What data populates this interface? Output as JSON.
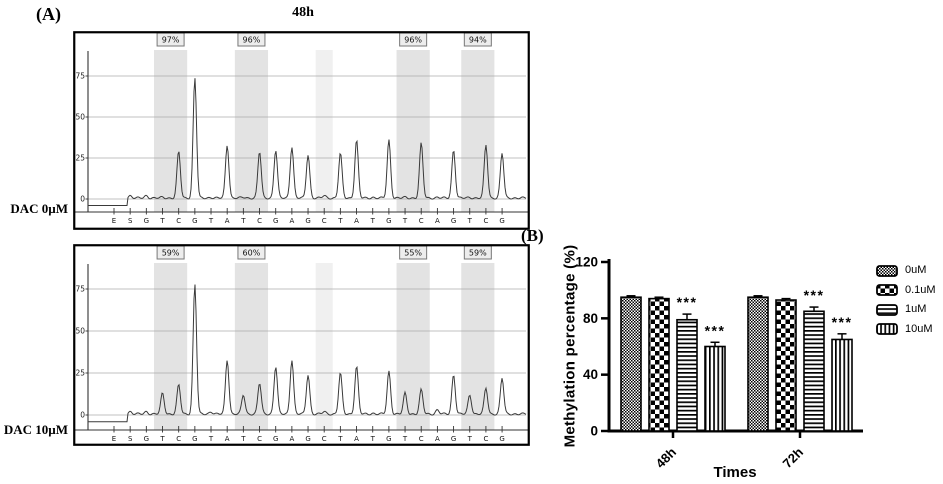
{
  "panel_a": {
    "label": "(A)",
    "title": "48h",
    "row_labels": [
      "DAC 0µM",
      "DAC 10µM"
    ]
  },
  "panel_b": {
    "label": "(B)",
    "ylabel": "Methylation percentage (%)",
    "xlabel": "Times",
    "legend": [
      "0uM",
      "0.1uM",
      "1uM",
      "10uM"
    ]
  },
  "chart_data": [
    {
      "type": "line",
      "subtype": "pyrogram",
      "name": "pyrogram-dac-0um",
      "title": "48h",
      "row_label": "DAC 0µM",
      "x_sequence": [
        "E",
        "S",
        "G",
        "T",
        "C",
        "G",
        "T",
        "A",
        "T",
        "C",
        "G",
        "A",
        "G",
        "C",
        "T",
        "A",
        "T",
        "G",
        "T",
        "C",
        "A",
        "G",
        "T",
        "C",
        "G"
      ],
      "peak_heights": [
        0,
        2,
        2,
        1,
        29,
        74,
        1,
        33,
        1,
        29,
        30,
        32,
        27,
        2,
        28,
        36,
        1,
        36,
        1,
        34,
        1,
        30,
        1,
        33,
        28
      ],
      "pre_signal_baseline": -4,
      "yticks": [
        0,
        25,
        50,
        75
      ],
      "ylim": [
        -8,
        92
      ],
      "methylation_sites": [
        {
          "positions": [
            3,
            4
          ],
          "label": "97%"
        },
        {
          "positions": [
            8,
            9
          ],
          "label": "96%"
        },
        {
          "positions": [
            13
          ],
          "label": "",
          "light": true
        },
        {
          "positions": [
            18,
            19
          ],
          "label": "96%"
        },
        {
          "positions": [
            22,
            23
          ],
          "label": "94%"
        }
      ]
    },
    {
      "type": "line",
      "subtype": "pyrogram",
      "name": "pyrogram-dac-10um",
      "title": "",
      "row_label": "DAC 10µM",
      "x_sequence": [
        "E",
        "S",
        "G",
        "T",
        "C",
        "G",
        "T",
        "A",
        "T",
        "C",
        "G",
        "A",
        "G",
        "C",
        "T",
        "A",
        "T",
        "G",
        "T",
        "C",
        "A",
        "G",
        "T",
        "C",
        "G"
      ],
      "peak_heights": [
        0,
        2,
        2,
        13,
        18,
        78,
        2,
        33,
        12,
        19,
        29,
        33,
        24,
        2,
        25,
        29,
        1,
        26,
        13,
        15,
        3,
        24,
        12,
        16,
        22
      ],
      "pre_signal_baseline": -4,
      "yticks": [
        0,
        25,
        50,
        75
      ],
      "ylim": [
        -8,
        92
      ],
      "methylation_sites": [
        {
          "positions": [
            3,
            4
          ],
          "label": "59%"
        },
        {
          "positions": [
            8,
            9
          ],
          "label": "60%"
        },
        {
          "positions": [
            13
          ],
          "label": "",
          "light": true
        },
        {
          "positions": [
            18,
            19
          ],
          "label": "55%"
        },
        {
          "positions": [
            22,
            23
          ],
          "label": "59%"
        }
      ]
    },
    {
      "type": "bar",
      "name": "methylation-percentage-by-dose",
      "categories": [
        "48h",
        "72h"
      ],
      "series": [
        {
          "name": "0uM",
          "pattern": "fine-checker",
          "values": [
            95,
            95
          ],
          "errors": [
            1,
            1
          ],
          "sig": [
            "",
            ""
          ]
        },
        {
          "name": "0.1uM",
          "pattern": "checkerboard",
          "values": [
            94,
            93
          ],
          "errors": [
            1,
            1
          ],
          "sig": [
            "",
            ""
          ]
        },
        {
          "name": "1uM",
          "pattern": "horizontal-stripes",
          "values": [
            79,
            85
          ],
          "errors": [
            4,
            3
          ],
          "sig": [
            "***",
            "***"
          ]
        },
        {
          "name": "10uM",
          "pattern": "vertical-stripes",
          "values": [
            60,
            65
          ],
          "errors": [
            3,
            4
          ],
          "sig": [
            "***",
            "***"
          ]
        }
      ],
      "ylabel": "Methylation percentage (%)",
      "xlabel": "Times",
      "yticks": [
        0,
        40,
        80,
        120
      ],
      "ylim": [
        0,
        120
      ],
      "legend_position": "right",
      "colors": {
        "bar_outline": "#000000",
        "band_fill": "#e3e3e3",
        "band_fill_light": "#f0f0f0",
        "trace": "#3a3a3a"
      }
    }
  ]
}
